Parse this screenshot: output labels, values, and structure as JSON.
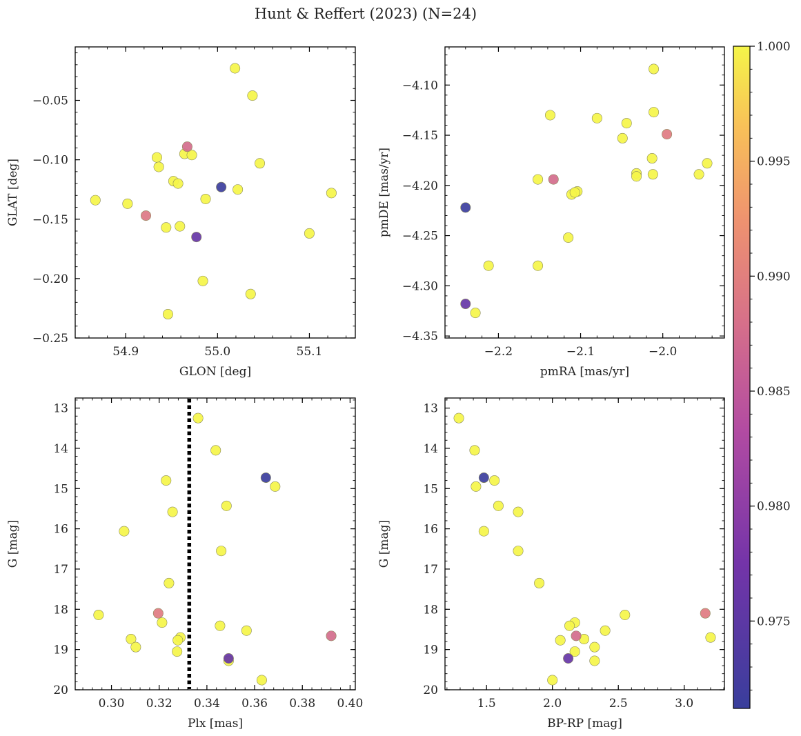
{
  "figure": {
    "title": "Hunt & Reffert (2023) (N=24)"
  },
  "colorbar": {
    "range": [
      0.9712,
      1.0
    ],
    "colormap": "plasma",
    "ticks": [
      0.975,
      0.98,
      0.985,
      0.99,
      0.995,
      1.0
    ],
    "tick_labels": [
      "0.975",
      "0.980",
      "0.985",
      "0.990",
      "0.995",
      "1.000"
    ]
  },
  "chart_data": [
    {
      "type": "scatter",
      "title": "",
      "xlabel": "GLON [deg]",
      "ylabel": "GLAT [deg]",
      "xlim": [
        54.845,
        55.15
      ],
      "ylim": [
        -0.25,
        -0.005
      ],
      "xticks": [
        54.9,
        55.0,
        55.1
      ],
      "xtick_labels": [
        "54.9",
        "55.0",
        "55.1"
      ],
      "yticks": [
        -0.05,
        -0.1,
        -0.15,
        -0.2,
        -0.25
      ],
      "ytick_labels": [
        "−0.05",
        "−0.10",
        "−0.15",
        "−0.20",
        "−0.25"
      ],
      "points": [
        {
          "x": 55.019,
          "y": -0.023,
          "c": 1.0
        },
        {
          "x": 55.038,
          "y": -0.046,
          "c": 1.0
        },
        {
          "x": 54.967,
          "y": -0.089,
          "c": 0.9875
        },
        {
          "x": 54.934,
          "y": -0.098,
          "c": 1.0
        },
        {
          "x": 54.964,
          "y": -0.095,
          "c": 1.0
        },
        {
          "x": 54.972,
          "y": -0.096,
          "c": 1.0
        },
        {
          "x": 54.936,
          "y": -0.106,
          "c": 1.0
        },
        {
          "x": 55.046,
          "y": -0.103,
          "c": 1.0
        },
        {
          "x": 55.004,
          "y": -0.123,
          "c": 0.9715
        },
        {
          "x": 54.952,
          "y": -0.118,
          "c": 1.0
        },
        {
          "x": 54.957,
          "y": -0.12,
          "c": 1.0
        },
        {
          "x": 55.022,
          "y": -0.125,
          "c": 1.0
        },
        {
          "x": 54.987,
          "y": -0.133,
          "c": 1.0
        },
        {
          "x": 54.867,
          "y": -0.134,
          "c": 1.0
        },
        {
          "x": 54.902,
          "y": -0.137,
          "c": 1.0
        },
        {
          "x": 55.124,
          "y": -0.128,
          "c": 1.0
        },
        {
          "x": 54.922,
          "y": -0.147,
          "c": 0.989
        },
        {
          "x": 54.944,
          "y": -0.157,
          "c": 1.0
        },
        {
          "x": 54.959,
          "y": -0.156,
          "c": 1.0
        },
        {
          "x": 54.977,
          "y": -0.165,
          "c": 0.976
        },
        {
          "x": 55.1,
          "y": -0.162,
          "c": 1.0
        },
        {
          "x": 54.984,
          "y": -0.202,
          "c": 1.0
        },
        {
          "x": 55.036,
          "y": -0.213,
          "c": 1.0
        },
        {
          "x": 54.946,
          "y": -0.23,
          "c": 1.0
        }
      ]
    },
    {
      "type": "scatter",
      "title": "",
      "xlabel": "pmRA [mas/yr]",
      "ylabel": "pmDE [mas/yr]",
      "xlim": [
        -2.265,
        -1.925
      ],
      "ylim": [
        -4.352,
        -4.062
      ],
      "xticks": [
        -2.2,
        -2.1,
        -2.0
      ],
      "xtick_labels": [
        "−2.2",
        "−2.1",
        "−2.0"
      ],
      "yticks": [
        -4.1,
        -4.15,
        -4.2,
        -4.25,
        -4.3,
        -4.35
      ],
      "ytick_labels": [
        "−4.10",
        "−4.15",
        "−4.20",
        "−4.25",
        "−4.30",
        "−4.35"
      ],
      "points": [
        {
          "x": -2.011,
          "y": -4.084,
          "c": 1.0
        },
        {
          "x": -2.011,
          "y": -4.127,
          "c": 1.0
        },
        {
          "x": -2.137,
          "y": -4.13,
          "c": 1.0
        },
        {
          "x": -2.08,
          "y": -4.133,
          "c": 1.0
        },
        {
          "x": -2.044,
          "y": -4.138,
          "c": 1.0
        },
        {
          "x": -2.049,
          "y": -4.153,
          "c": 1.0
        },
        {
          "x": -1.995,
          "y": -4.149,
          "c": 0.9895
        },
        {
          "x": -2.013,
          "y": -4.173,
          "c": 1.0
        },
        {
          "x": -1.946,
          "y": -4.178,
          "c": 1.0
        },
        {
          "x": -2.032,
          "y": -4.188,
          "c": 1.0
        },
        {
          "x": -2.032,
          "y": -4.191,
          "c": 1.0
        },
        {
          "x": -2.012,
          "y": -4.189,
          "c": 1.0
        },
        {
          "x": -1.956,
          "y": -4.189,
          "c": 1.0
        },
        {
          "x": -2.152,
          "y": -4.194,
          "c": 1.0
        },
        {
          "x": -2.133,
          "y": -4.194,
          "c": 0.9875
        },
        {
          "x": -2.104,
          "y": -4.206,
          "c": 1.0
        },
        {
          "x": -2.111,
          "y": -4.209,
          "c": 1.0
        },
        {
          "x": -2.24,
          "y": -4.222,
          "c": 0.9715
        },
        {
          "x": -2.115,
          "y": -4.252,
          "c": 1.0
        },
        {
          "x": -2.212,
          "y": -4.28,
          "c": 1.0
        },
        {
          "x": -2.152,
          "y": -4.28,
          "c": 1.0
        },
        {
          "x": -2.24,
          "y": -4.318,
          "c": 0.976
        },
        {
          "x": -2.228,
          "y": -4.327,
          "c": 1.0
        },
        {
          "x": -2.107,
          "y": -4.207,
          "c": 1.0
        }
      ]
    },
    {
      "type": "scatter",
      "title": "",
      "xlabel": "Plx [mas]",
      "ylabel": "G [mag]",
      "xlim": [
        0.2848,
        0.4022
      ],
      "ylim": [
        20.0,
        12.75
      ],
      "y_inverted": true,
      "xticks": [
        0.3,
        0.32,
        0.34,
        0.36,
        0.38,
        0.4
      ],
      "xtick_labels": [
        "0.30",
        "0.32",
        "0.34",
        "0.36",
        "0.38",
        "0.40"
      ],
      "yticks": [
        13,
        14,
        15,
        16,
        17,
        18,
        19,
        20
      ],
      "ytick_labels": [
        "13",
        "14",
        "15",
        "16",
        "17",
        "18",
        "19",
        "20"
      ],
      "reference_line": {
        "orientation": "vertical",
        "x": 0.3326,
        "style": "dotted",
        "color": "#000000"
      },
      "points": [
        {
          "x": 0.3363,
          "y": 13.25,
          "c": 1.0
        },
        {
          "x": 0.3437,
          "y": 14.05,
          "c": 1.0
        },
        {
          "x": 0.3229,
          "y": 14.8,
          "c": 1.0
        },
        {
          "x": 0.3647,
          "y": 14.73,
          "c": 0.9715
        },
        {
          "x": 0.3686,
          "y": 14.95,
          "c": 1.0
        },
        {
          "x": 0.3482,
          "y": 15.43,
          "c": 1.0
        },
        {
          "x": 0.3256,
          "y": 15.58,
          "c": 1.0
        },
        {
          "x": 0.3053,
          "y": 16.06,
          "c": 1.0
        },
        {
          "x": 0.346,
          "y": 16.55,
          "c": 1.0
        },
        {
          "x": 0.3241,
          "y": 17.35,
          "c": 1.0
        },
        {
          "x": 0.2946,
          "y": 18.14,
          "c": 1.0
        },
        {
          "x": 0.3196,
          "y": 18.1,
          "c": 0.9895
        },
        {
          "x": 0.3212,
          "y": 18.33,
          "c": 1.0
        },
        {
          "x": 0.3455,
          "y": 18.41,
          "c": 1.0
        },
        {
          "x": 0.3566,
          "y": 18.53,
          "c": 1.0
        },
        {
          "x": 0.3921,
          "y": 18.66,
          "c": 0.9875
        },
        {
          "x": 0.3082,
          "y": 18.74,
          "c": 1.0
        },
        {
          "x": 0.3289,
          "y": 18.7,
          "c": 1.0
        },
        {
          "x": 0.3278,
          "y": 18.77,
          "c": 1.0
        },
        {
          "x": 0.3102,
          "y": 18.94,
          "c": 1.0
        },
        {
          "x": 0.3275,
          "y": 19.05,
          "c": 1.0
        },
        {
          "x": 0.3491,
          "y": 19.22,
          "c": 0.976
        },
        {
          "x": 0.3491,
          "y": 19.28,
          "c": 1.0
        },
        {
          "x": 0.363,
          "y": 19.76,
          "c": 1.0
        }
      ]
    },
    {
      "type": "scatter",
      "title": "",
      "xlabel": "BP-RP [mag]",
      "ylabel": "G [mag]",
      "xlim": [
        1.185,
        3.305
      ],
      "ylim": [
        20.0,
        12.75
      ],
      "y_inverted": true,
      "xticks": [
        1.5,
        2.0,
        2.5,
        3.0
      ],
      "xtick_labels": [
        "1.5",
        "2.0",
        "2.5",
        "3.0"
      ],
      "yticks": [
        13,
        14,
        15,
        16,
        17,
        18,
        19,
        20
      ],
      "ytick_labels": [
        "13",
        "14",
        "15",
        "16",
        "17",
        "18",
        "19",
        "20"
      ],
      "points": [
        {
          "x": 1.29,
          "y": 13.25,
          "c": 1.0
        },
        {
          "x": 1.41,
          "y": 14.05,
          "c": 1.0
        },
        {
          "x": 1.42,
          "y": 14.95,
          "c": 1.0
        },
        {
          "x": 1.48,
          "y": 14.73,
          "c": 0.9715
        },
        {
          "x": 1.56,
          "y": 14.8,
          "c": 1.0
        },
        {
          "x": 1.59,
          "y": 15.43,
          "c": 1.0
        },
        {
          "x": 1.74,
          "y": 15.58,
          "c": 1.0
        },
        {
          "x": 1.48,
          "y": 16.06,
          "c": 1.0
        },
        {
          "x": 1.74,
          "y": 16.55,
          "c": 1.0
        },
        {
          "x": 1.9,
          "y": 17.35,
          "c": 1.0
        },
        {
          "x": 2.55,
          "y": 18.14,
          "c": 1.0
        },
        {
          "x": 3.16,
          "y": 18.1,
          "c": 0.9895
        },
        {
          "x": 2.17,
          "y": 18.33,
          "c": 1.0
        },
        {
          "x": 2.13,
          "y": 18.41,
          "c": 1.0
        },
        {
          "x": 2.4,
          "y": 18.53,
          "c": 1.0
        },
        {
          "x": 2.18,
          "y": 18.66,
          "c": 0.9875
        },
        {
          "x": 2.06,
          "y": 18.77,
          "c": 1.0
        },
        {
          "x": 2.24,
          "y": 18.74,
          "c": 1.0
        },
        {
          "x": 3.2,
          "y": 18.7,
          "c": 1.0
        },
        {
          "x": 2.32,
          "y": 18.94,
          "c": 1.0
        },
        {
          "x": 2.17,
          "y": 19.05,
          "c": 1.0
        },
        {
          "x": 2.12,
          "y": 19.22,
          "c": 0.976
        },
        {
          "x": 2.32,
          "y": 19.28,
          "c": 1.0
        },
        {
          "x": 2.0,
          "y": 19.76,
          "c": 1.0
        }
      ]
    }
  ]
}
